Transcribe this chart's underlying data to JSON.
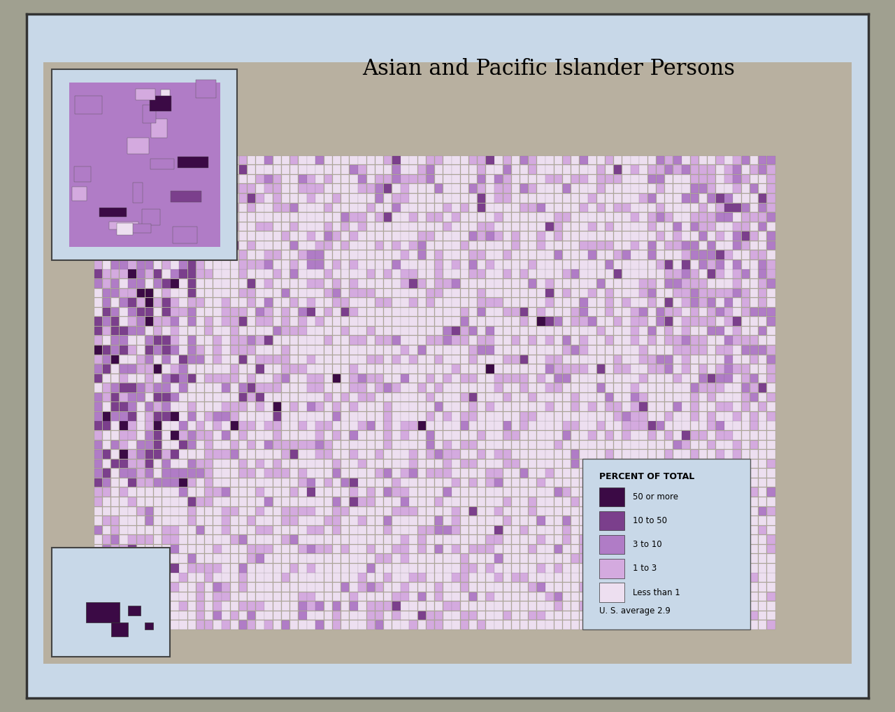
{
  "title": "Asian and Pacific Islander Persons",
  "legend_title": "PERCENT OF TOTAL",
  "legend_labels": [
    "50 or more",
    "10 to 50",
    "3 to 10",
    "1 to 3",
    "Less than 1"
  ],
  "legend_note": "U. S. average 2.9",
  "colors": {
    "50_or_more": "#3b0a45",
    "10_to_50": "#7b3f8c",
    "3_to_10": "#b07cc6",
    "1_to_3": "#d4aadf",
    "less_than_1": "#eddff0",
    "background": "#c8d8e8",
    "land_bg": "#b8b0a0",
    "map_bg": "#b8b0a0",
    "water": "#c8d8e8",
    "border_outer": "#555555",
    "county_border": "#555555",
    "state_border": "#222222"
  },
  "figure_bg": "#a0a090",
  "map_frame_bg": "#b0a898",
  "title_fontsize": 22,
  "legend_title_fontsize": 10,
  "legend_fontsize": 10
}
